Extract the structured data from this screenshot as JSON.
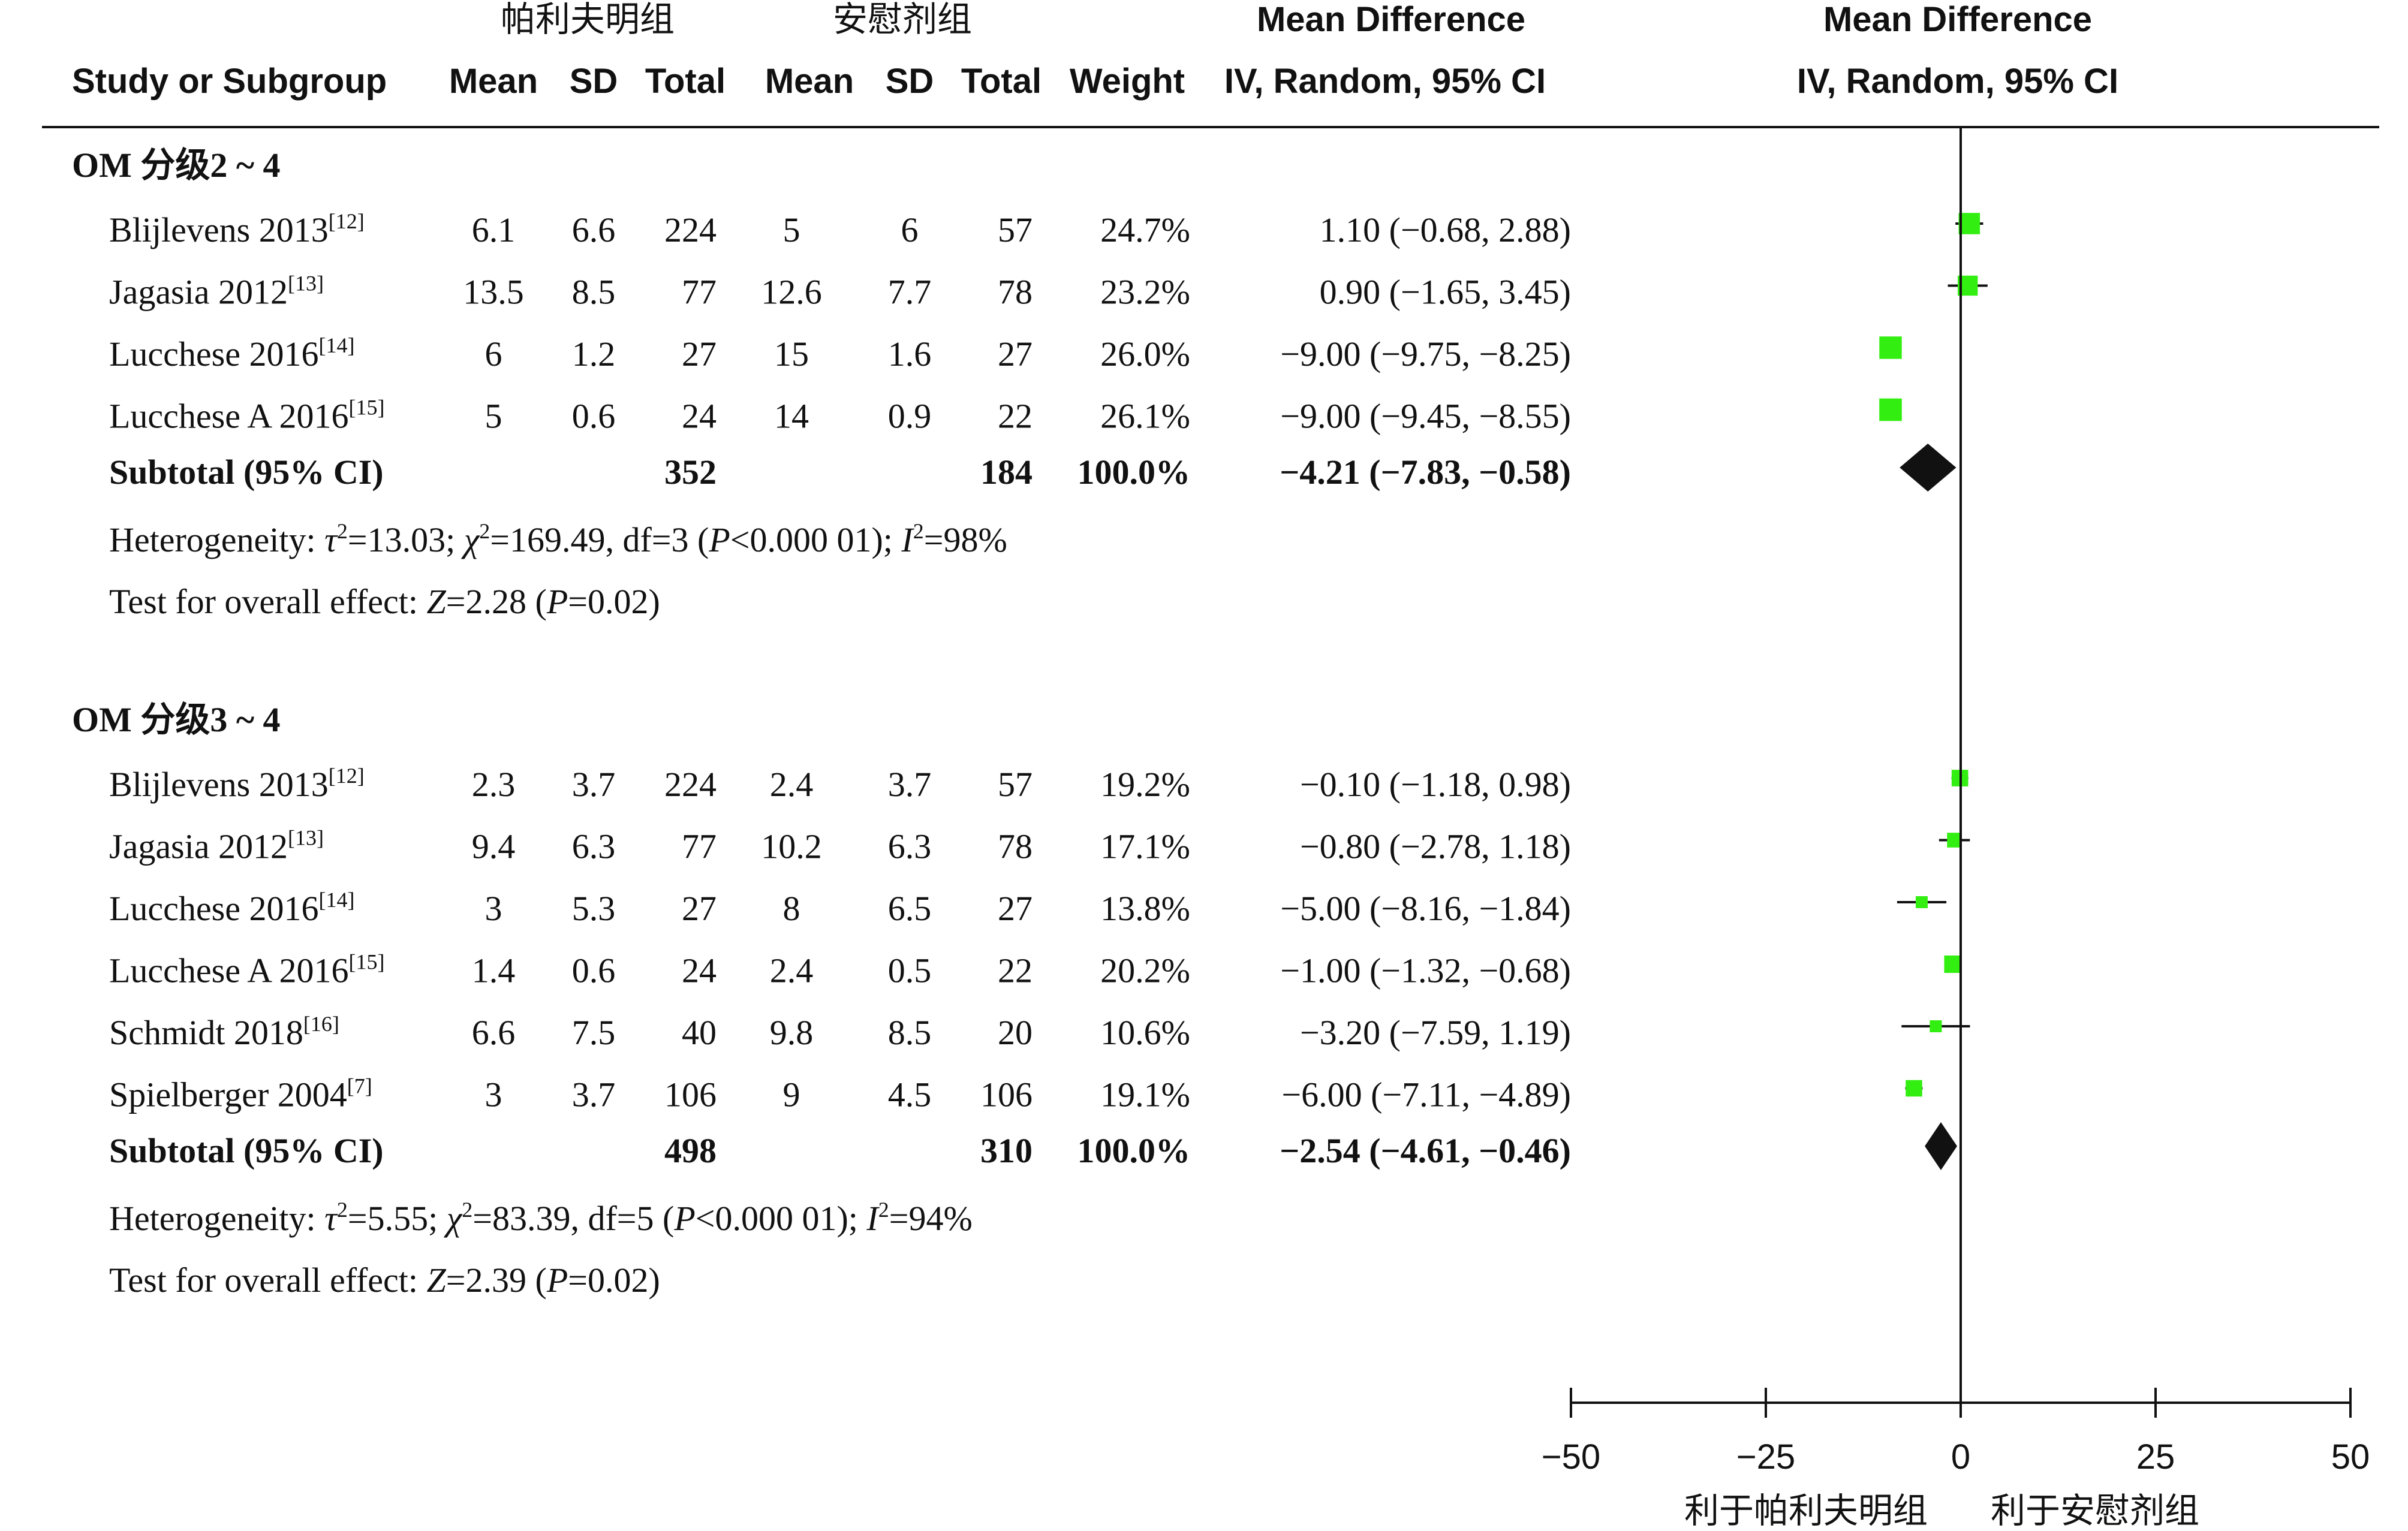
{
  "header": {
    "group1": "帕利夫明组",
    "group2": "安慰剂组",
    "effect_title": "Mean Difference",
    "plot_title": "Mean Difference",
    "study_col": "Study or Subgroup",
    "mean1": "Mean",
    "sd1": "SD",
    "total1": "Total",
    "mean2": "Mean",
    "sd2": "SD",
    "total2": "Total",
    "weight": "Weight",
    "ci_col": "IV, Random, 95% CI",
    "plot_ci": "IV, Random, 95% CI"
  },
  "chart_data": {
    "type": "forest",
    "xlim": [
      -50,
      50
    ],
    "xticks": [
      "−50",
      "−25",
      "0",
      "25",
      "50"
    ],
    "xtick_values": [
      -50,
      -25,
      0,
      25,
      50
    ],
    "favours_left": "利于帕利夫明组",
    "favours_right": "利于安慰剂组",
    "marker_color": "#33ee11",
    "subgroups": [
      {
        "title": "OM 分级2 ~ 4",
        "studies": [
          {
            "name": "Blijlevens 2013",
            "ref": "[12]",
            "m1": "6.1",
            "sd1": "6.6",
            "n1": "224",
            "m2": "5",
            "sd2": "6",
            "n2": "57",
            "w": "24.7%",
            "ci": "1.10 (−0.68, 2.88)",
            "md": 1.1,
            "lo": -0.68,
            "hi": 2.88
          },
          {
            "name": "Jagasia 2012",
            "ref": "[13]",
            "m1": "13.5",
            "sd1": "8.5",
            "n1": "77",
            "m2": "12.6",
            "sd2": "7.7",
            "n2": "78",
            "w": "23.2%",
            "ci": "0.90 (−1.65, 3.45)",
            "md": 0.9,
            "lo": -1.65,
            "hi": 3.45
          },
          {
            "name": "Lucchese 2016",
            "ref": "[14]",
            "m1": "6",
            "sd1": "1.2",
            "n1": "27",
            "m2": "15",
            "sd2": "1.6",
            "n2": "27",
            "w": "26.0%",
            "ci": "−9.00 (−9.75, −8.25)",
            "md": -9.0,
            "lo": -9.75,
            "hi": -8.25
          },
          {
            "name": "Lucchese A 2016",
            "ref": "[15]",
            "m1": "5",
            "sd1": "0.6",
            "n1": "24",
            "m2": "14",
            "sd2": "0.9",
            "n2": "22",
            "w": "26.1%",
            "ci": "−9.00 (−9.45, −8.55)",
            "md": -9.0,
            "lo": -9.45,
            "hi": -8.55
          }
        ],
        "subtotal": {
          "label": "Subtotal (95% CI)",
          "n1": "352",
          "n2": "184",
          "w": "100.0%",
          "ci": "−4.21 (−7.83, −0.58)",
          "md": -4.21,
          "lo": -7.83,
          "hi": -0.58
        },
        "heterogeneity": {
          "prefix": "Heterogeneity: ",
          "tau2": "=13.03; ",
          "chi2": "=169.49, df=3 (",
          "p": "<0.000 01); ",
          "i2": "=98%"
        },
        "overall": {
          "prefix": "Test for overall effect: ",
          "z": "=2.28 (",
          "p": "=0.02)"
        }
      },
      {
        "title": "OM 分级3 ~ 4",
        "studies": [
          {
            "name": "Blijlevens 2013",
            "ref": "[12]",
            "m1": "2.3",
            "sd1": "3.7",
            "n1": "224",
            "m2": "2.4",
            "sd2": "3.7",
            "n2": "57",
            "w": "19.2%",
            "ci": "−0.10 (−1.18, 0.98)",
            "md": -0.1,
            "lo": -1.18,
            "hi": 0.98
          },
          {
            "name": "Jagasia 2012",
            "ref": "[13]",
            "m1": "9.4",
            "sd1": "6.3",
            "n1": "77",
            "m2": "10.2",
            "sd2": "6.3",
            "n2": "78",
            "w": "17.1%",
            "ci": "−0.80 (−2.78, 1.18)",
            "md": -0.8,
            "lo": -2.78,
            "hi": 1.18
          },
          {
            "name": "Lucchese 2016",
            "ref": "[14]",
            "m1": "3",
            "sd1": "5.3",
            "n1": "27",
            "m2": "8",
            "sd2": "6.5",
            "n2": "27",
            "w": "13.8%",
            "ci": "−5.00 (−8.16, −1.84)",
            "md": -5.0,
            "lo": -8.16,
            "hi": -1.84
          },
          {
            "name": "Lucchese A 2016",
            "ref": "[15]",
            "m1": "1.4",
            "sd1": "0.6",
            "n1": "24",
            "m2": "2.4",
            "sd2": "0.5",
            "n2": "22",
            "w": "20.2%",
            "ci": "−1.00 (−1.32, −0.68)",
            "md": -1.0,
            "lo": -1.32,
            "hi": -0.68
          },
          {
            "name": "Schmidt 2018",
            "ref": "[16]",
            "m1": "6.6",
            "sd1": "7.5",
            "n1": "40",
            "m2": "9.8",
            "sd2": "8.5",
            "n2": "20",
            "w": "10.6%",
            "ci": "−3.20 (−7.59, 1.19)",
            "md": -3.2,
            "lo": -7.59,
            "hi": 1.19
          },
          {
            "name": "Spielberger 2004",
            "ref": "[7]",
            "m1": "3",
            "sd1": "3.7",
            "n1": "106",
            "m2": "9",
            "sd2": "4.5",
            "n2": "106",
            "w": "19.1%",
            "ci": "−6.00 (−7.11, −4.89)",
            "md": -6.0,
            "lo": -7.11,
            "hi": -4.89
          }
        ],
        "subtotal": {
          "label": "Subtotal (95% CI)",
          "n1": "498",
          "n2": "310",
          "w": "100.0%",
          "ci": "−2.54 (−4.61, −0.46)",
          "md": -2.54,
          "lo": -4.61,
          "hi": -0.46
        },
        "heterogeneity": {
          "prefix": "Heterogeneity: ",
          "tau2": "=5.55; ",
          "chi2": "=83.39, df=5 (",
          "p": "<0.000 01); ",
          "i2": "=94%"
        },
        "overall": {
          "prefix": "Test for overall effect: ",
          "z": "=2.39 (",
          "p": "=0.02)"
        }
      }
    ]
  }
}
